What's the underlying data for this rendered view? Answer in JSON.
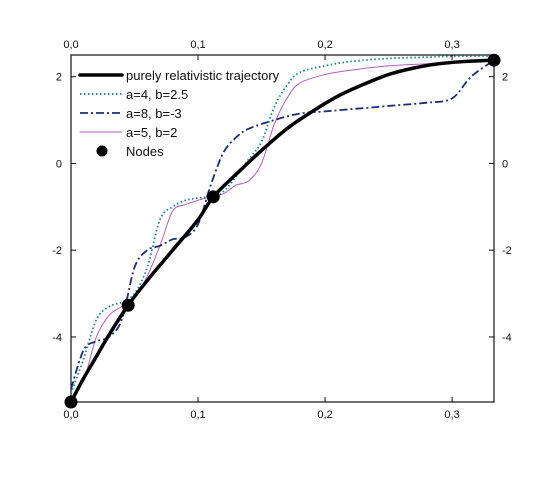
{
  "chart_data": {
    "type": "line",
    "title": "",
    "xlabel": "",
    "ylabel": "",
    "xlim": [
      0.0,
      0.333
    ],
    "ylim": [
      -5.5,
      2.5
    ],
    "x_ticks": [
      0.0,
      0.1,
      0.2,
      0.3
    ],
    "x_tick_labels": [
      "0,0",
      "0,1",
      "0,2",
      "0,3"
    ],
    "y_ticks": [
      -4,
      -2,
      0,
      2
    ],
    "y_tick_labels": [
      "-4",
      "-2",
      "0",
      "2"
    ],
    "grid": false,
    "legend_position": "top-left",
    "series": [
      {
        "name": "purely relativistic trajectory",
        "color": "#000000",
        "style": "solid-thick",
        "x": [
          0.0,
          0.01,
          0.02,
          0.03,
          0.045,
          0.06,
          0.08,
          0.1,
          0.112,
          0.13,
          0.15,
          0.17,
          0.19,
          0.21,
          0.23,
          0.25,
          0.27,
          0.29,
          0.31,
          0.333
        ],
        "y": [
          -5.5,
          -4.95,
          -4.45,
          -3.95,
          -3.27,
          -2.7,
          -2.0,
          -1.3,
          -0.77,
          -0.25,
          0.3,
          0.8,
          1.2,
          1.55,
          1.82,
          2.05,
          2.2,
          2.3,
          2.35,
          2.38
        ]
      },
      {
        "name": "a=4, b=2.5",
        "color": "#1a7f8f",
        "style": "dotted",
        "x": [
          0.0,
          0.01,
          0.02,
          0.03,
          0.04,
          0.05,
          0.06,
          0.07,
          0.08,
          0.09,
          0.1,
          0.112,
          0.12,
          0.13,
          0.14,
          0.15,
          0.16,
          0.17,
          0.18,
          0.2,
          0.22,
          0.25,
          0.28,
          0.3,
          0.333
        ],
        "y": [
          -5.3,
          -4.5,
          -3.6,
          -3.3,
          -3.2,
          -3.0,
          -2.4,
          -1.3,
          -1.0,
          -0.85,
          -0.8,
          -0.75,
          -0.65,
          -0.3,
          0.1,
          0.5,
          1.3,
          1.8,
          2.1,
          2.25,
          2.35,
          2.42,
          2.45,
          2.47,
          2.48
        ]
      },
      {
        "name": "a=8, b=-3",
        "color": "#1f2b7a",
        "style": "dash-dot",
        "x": [
          0.0,
          0.01,
          0.02,
          0.03,
          0.04,
          0.05,
          0.06,
          0.07,
          0.08,
          0.09,
          0.1,
          0.11,
          0.12,
          0.13,
          0.14,
          0.16,
          0.18,
          0.2,
          0.22,
          0.24,
          0.26,
          0.28,
          0.3,
          0.315,
          0.333
        ],
        "y": [
          -5.2,
          -4.3,
          -4.1,
          -4.0,
          -3.6,
          -2.4,
          -2.0,
          -1.9,
          -1.75,
          -1.7,
          -1.4,
          -0.5,
          0.25,
          0.6,
          0.8,
          1.0,
          1.15,
          1.2,
          1.25,
          1.3,
          1.35,
          1.4,
          1.5,
          2.0,
          2.38
        ]
      },
      {
        "name": "a=5, b=2",
        "color": "#b060c0",
        "style": "solid-thin",
        "x": [
          0.0,
          0.01,
          0.02,
          0.03,
          0.04,
          0.05,
          0.06,
          0.07,
          0.08,
          0.09,
          0.1,
          0.112,
          0.12,
          0.13,
          0.14,
          0.15,
          0.16,
          0.17,
          0.18,
          0.2,
          0.22,
          0.25,
          0.28,
          0.3,
          0.333
        ],
        "y": [
          -5.4,
          -5.0,
          -4.0,
          -3.5,
          -3.3,
          -3.1,
          -2.6,
          -1.9,
          -1.1,
          -0.95,
          -0.85,
          -0.75,
          -0.7,
          -0.5,
          -0.4,
          0.0,
          0.9,
          1.5,
          1.85,
          2.05,
          2.15,
          2.25,
          2.3,
          2.35,
          2.38
        ]
      }
    ],
    "nodes": {
      "name": "Nodes",
      "color": "#000000",
      "x": [
        0.0,
        0.045,
        0.112,
        0.333
      ],
      "y": [
        -5.5,
        -3.27,
        -0.77,
        2.38
      ]
    },
    "legend": [
      {
        "label": "purely relativistic trajectory",
        "series": 0
      },
      {
        "label": "a=4, b=2.5",
        "series": 1
      },
      {
        "label": "a=8, b=-3",
        "series": 2
      },
      {
        "label": "a=5, b=2",
        "series": 3
      },
      {
        "label": "Nodes",
        "series": "nodes"
      }
    ]
  }
}
